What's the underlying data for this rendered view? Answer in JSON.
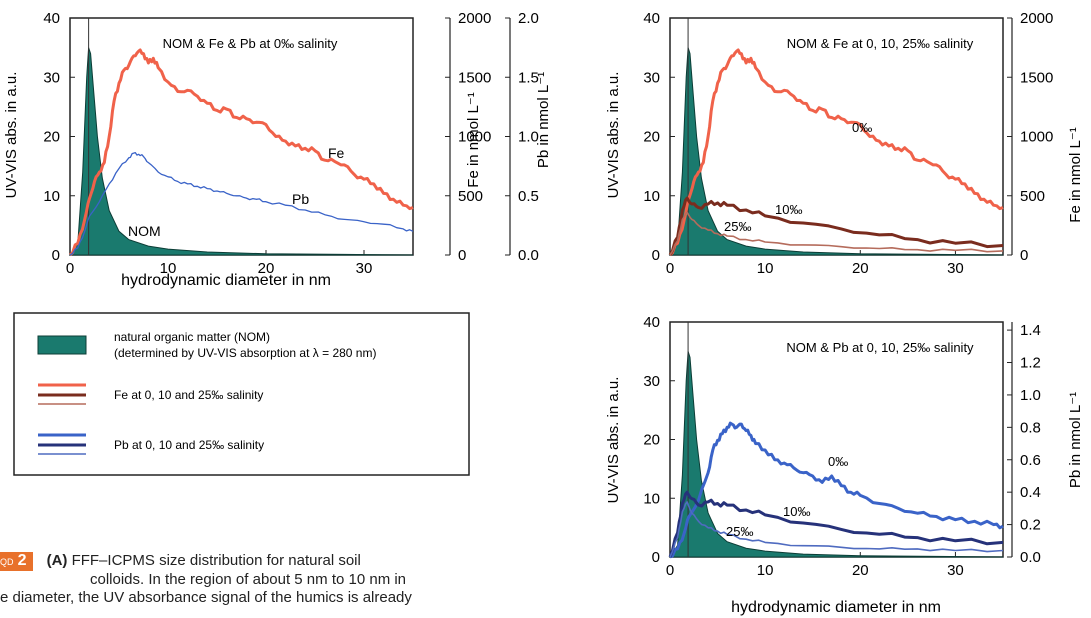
{
  "colors": {
    "nom_fill": "#1a7a6e",
    "nom_edge": "#0c3d36",
    "fe_0": "#f0624a",
    "fe_10": "#7a2c1e",
    "fe_25": "#b56c5c",
    "pb_0": "#3a63c8",
    "pb_10": "#26327a",
    "pb_25": "#4f6bc0",
    "caption_tag": "#e8712b"
  },
  "legend": {
    "items": [
      {
        "key": "nom",
        "label": "natural organic matter (NOM)",
        "label2": "(determined by UV-VIS absorption at  λ = 280 nm)"
      },
      {
        "key": "fe",
        "label": "Fe at 0, 10 and 25‰ salinity"
      },
      {
        "key": "pb",
        "label": "Pb at 0, 10 and 25‰ salinity"
      }
    ]
  },
  "caption": {
    "tag_small": "QD",
    "tag_num": "2",
    "bold": "(A)",
    "line1": " FFF–ICPMS size distribution for natural soil",
    "line2": "colloids. In the region of about 5 nm to 10 nm in",
    "line3": "e diameter, the UV absorbance signal of the humics is already"
  },
  "chart_data": [
    {
      "type": "line",
      "title": "NOM & Fe & Pb at 0‰ salinity",
      "xlabel": "hydrodynamic diameter in nm",
      "ylabel": "UV-VIS abs. in a.u.",
      "y2label": "Fe in nmol L⁻¹",
      "y3label": "Pb in nmol L⁻¹",
      "xlim": [
        0,
        35
      ],
      "ylim": [
        0,
        40
      ],
      "y2lim": [
        0,
        2000
      ],
      "y3lim": [
        0,
        2.0
      ],
      "xticks": [
        "0",
        "10",
        "20",
        "30"
      ],
      "yticks": [
        "0",
        "10",
        "20",
        "30",
        "40"
      ],
      "y2ticks": [
        "0",
        "500",
        "1000",
        "1500",
        "2000"
      ],
      "y3ticks": [
        "0.0",
        "0.5",
        "1.0",
        "1.5",
        "2.0"
      ],
      "annotations": [
        "Fe",
        "Pb",
        "NOM"
      ],
      "series": [
        {
          "name": "NOM",
          "axis": "y",
          "x": [
            0,
            0.8,
            1.3,
            1.7,
            1.9,
            2.1,
            2.4,
            2.8,
            3.3,
            4,
            5,
            6,
            8,
            10,
            14,
            20,
            28,
            35
          ],
          "y": [
            0,
            2,
            14,
            30,
            35,
            34,
            28,
            20,
            13,
            7.5,
            4,
            2.6,
            1.5,
            1,
            0.5,
            0.2,
            0.1,
            0
          ]
        },
        {
          "name": "Fe",
          "axis": "y2",
          "x": [
            0,
            0.8,
            1.5,
            2,
            2.5,
            3,
            3.5,
            4,
            4.5,
            5,
            5.5,
            6,
            6.5,
            7,
            7.5,
            8,
            8.5,
            9,
            10,
            11,
            12,
            13,
            14,
            15,
            16,
            17,
            18,
            19,
            20,
            21,
            22,
            23,
            24,
            25,
            26,
            27,
            28,
            29,
            30,
            31,
            32,
            33,
            34,
            35
          ],
          "y": [
            0,
            100,
            300,
            480,
            620,
            700,
            780,
            1000,
            1300,
            1450,
            1560,
            1600,
            1680,
            1720,
            1700,
            1620,
            1660,
            1580,
            1460,
            1380,
            1390,
            1340,
            1280,
            1220,
            1230,
            1160,
            1150,
            1120,
            1100,
            1000,
            960,
            920,
            900,
            880,
            800,
            790,
            760,
            680,
            640,
            600,
            520,
            470,
            420,
            400
          ]
        },
        {
          "name": "Pb",
          "axis": "y3",
          "x": [
            0,
            0.8,
            1.5,
            2,
            3,
            4,
            5,
            6,
            6.5,
            7,
            7.5,
            8,
            9,
            10,
            11,
            12,
            13,
            14,
            15,
            16,
            17,
            18,
            19,
            20,
            22,
            24,
            26,
            28,
            30,
            32,
            34,
            35
          ],
          "y": [
            0,
            0.06,
            0.2,
            0.33,
            0.45,
            0.6,
            0.73,
            0.82,
            0.86,
            0.85,
            0.83,
            0.78,
            0.7,
            0.66,
            0.62,
            0.6,
            0.58,
            0.56,
            0.54,
            0.52,
            0.5,
            0.48,
            0.47,
            0.45,
            0.42,
            0.38,
            0.34,
            0.3,
            0.28,
            0.26,
            0.22,
            0.2
          ]
        }
      ]
    },
    {
      "type": "line",
      "title": "NOM & Fe at 0, 10, 25‰ salinity",
      "xlabel": "",
      "ylabel": "UV-VIS abs. in a.u.",
      "y2label": "Fe in nmol L⁻¹",
      "xlim": [
        0,
        35
      ],
      "ylim": [
        0,
        40
      ],
      "y2lim": [
        0,
        2000
      ],
      "xticks": [
        "0",
        "10",
        "20",
        "30"
      ],
      "yticks": [
        "0",
        "10",
        "20",
        "30",
        "40"
      ],
      "y2ticks": [
        "0",
        "500",
        "1000",
        "1500",
        "2000"
      ],
      "annotations": [
        "0‰",
        "10‰",
        "25‰"
      ],
      "series": [
        {
          "name": "NOM",
          "axis": "y",
          "x": [
            0,
            0.8,
            1.3,
            1.7,
            1.9,
            2.1,
            2.4,
            2.8,
            3.3,
            4,
            5,
            6,
            8,
            10,
            14,
            20,
            28,
            35
          ],
          "y": [
            0,
            2,
            14,
            30,
            35,
            34,
            28,
            20,
            13,
            7.5,
            4,
            2.6,
            1.5,
            1,
            0.5,
            0.2,
            0.1,
            0
          ]
        },
        {
          "name": "0‰",
          "axis": "y2",
          "x": [
            0,
            0.8,
            1.5,
            2,
            2.5,
            3,
            3.5,
            4,
            4.5,
            5,
            5.5,
            6,
            6.5,
            7,
            7.5,
            8,
            8.5,
            9,
            10,
            11,
            12,
            13,
            14,
            15,
            16,
            17,
            18,
            19,
            20,
            21,
            22,
            23,
            24,
            25,
            26,
            27,
            28,
            29,
            30,
            31,
            32,
            33,
            34,
            35
          ],
          "y": [
            0,
            100,
            300,
            480,
            620,
            700,
            780,
            1000,
            1300,
            1450,
            1560,
            1600,
            1680,
            1720,
            1700,
            1620,
            1660,
            1580,
            1460,
            1380,
            1390,
            1340,
            1280,
            1220,
            1230,
            1160,
            1150,
            1120,
            1100,
            1000,
            960,
            920,
            900,
            880,
            800,
            790,
            760,
            680,
            640,
            600,
            520,
            470,
            420,
            400
          ]
        },
        {
          "name": "10‰",
          "axis": "y2",
          "x": [
            0,
            0.8,
            1.3,
            1.8,
            2.3,
            3,
            4,
            5,
            6,
            8,
            10,
            14,
            18,
            22,
            26,
            30,
            35
          ],
          "y": [
            0,
            150,
            380,
            480,
            430,
            400,
            430,
            440,
            420,
            380,
            330,
            270,
            220,
            170,
            130,
            100,
            80
          ]
        },
        {
          "name": "25‰",
          "axis": "y2",
          "x": [
            0,
            0.8,
            1.3,
            1.8,
            2.3,
            3,
            4,
            5,
            6,
            8,
            10,
            14,
            18,
            22,
            26,
            30,
            35
          ],
          "y": [
            0,
            120,
            300,
            360,
            300,
            250,
            210,
            180,
            160,
            130,
            110,
            85,
            70,
            55,
            45,
            40,
            35
          ]
        }
      ]
    },
    {
      "type": "line",
      "title": "NOM & Pb at 0, 10, 25‰ salinity",
      "xlabel": "hydrodynamic diameter in nm",
      "ylabel": "UV-VIS abs. in a.u.",
      "y2label": "Pb in nmol L⁻¹",
      "xlim": [
        0,
        35
      ],
      "ylim": [
        0,
        40
      ],
      "y2lim": [
        0,
        1.45
      ],
      "xticks": [
        "0",
        "10",
        "20",
        "30"
      ],
      "yticks": [
        "0",
        "10",
        "20",
        "30",
        "40"
      ],
      "y2ticks": [
        "0.0",
        "0.2",
        "0.4",
        "0.6",
        "0.8",
        "1.0",
        "1.2",
        "1.4"
      ],
      "annotations": [
        "0‰",
        "10‰",
        "25‰"
      ],
      "series": [
        {
          "name": "NOM",
          "axis": "y",
          "x": [
            0,
            0.8,
            1.3,
            1.7,
            1.9,
            2.1,
            2.4,
            2.8,
            3.3,
            4,
            5,
            6,
            8,
            10,
            14,
            20,
            28,
            35
          ],
          "y": [
            0,
            2,
            14,
            30,
            35,
            34,
            28,
            20,
            13,
            7.5,
            4,
            2.6,
            1.5,
            1,
            0.5,
            0.2,
            0.1,
            0
          ]
        },
        {
          "name": "0‰",
          "axis": "y2",
          "x": [
            0,
            0.8,
            1.5,
            2,
            3,
            4,
            4.5,
            5,
            5.5,
            6,
            6.5,
            7,
            7.5,
            8,
            8.5,
            9,
            10,
            11,
            12,
            13,
            14,
            15,
            16,
            17,
            18,
            19,
            20,
            22,
            24,
            26,
            28,
            30,
            32,
            34,
            35
          ],
          "y": [
            0,
            0.05,
            0.15,
            0.25,
            0.35,
            0.52,
            0.66,
            0.72,
            0.76,
            0.8,
            0.82,
            0.8,
            0.82,
            0.78,
            0.75,
            0.7,
            0.66,
            0.6,
            0.58,
            0.55,
            0.52,
            0.5,
            0.46,
            0.5,
            0.44,
            0.4,
            0.38,
            0.33,
            0.3,
            0.27,
            0.25,
            0.23,
            0.22,
            0.2,
            0.19
          ]
        },
        {
          "name": "10‰",
          "axis": "y2",
          "x": [
            0,
            0.8,
            1.3,
            1.8,
            2.3,
            3,
            4,
            5,
            6,
            8,
            10,
            14,
            18,
            22,
            26,
            30,
            35
          ],
          "y": [
            0,
            0.15,
            0.33,
            0.4,
            0.36,
            0.32,
            0.34,
            0.33,
            0.32,
            0.29,
            0.26,
            0.21,
            0.17,
            0.14,
            0.12,
            0.1,
            0.09
          ]
        },
        {
          "name": "25‰",
          "axis": "y2",
          "x": [
            0,
            0.8,
            1.3,
            1.8,
            2.3,
            3,
            4,
            5,
            6,
            8,
            10,
            14,
            18,
            22,
            26,
            30,
            35
          ],
          "y": [
            0,
            0.12,
            0.28,
            0.34,
            0.27,
            0.22,
            0.18,
            0.16,
            0.14,
            0.11,
            0.09,
            0.07,
            0.06,
            0.05,
            0.05,
            0.04,
            0.04
          ]
        }
      ]
    }
  ]
}
